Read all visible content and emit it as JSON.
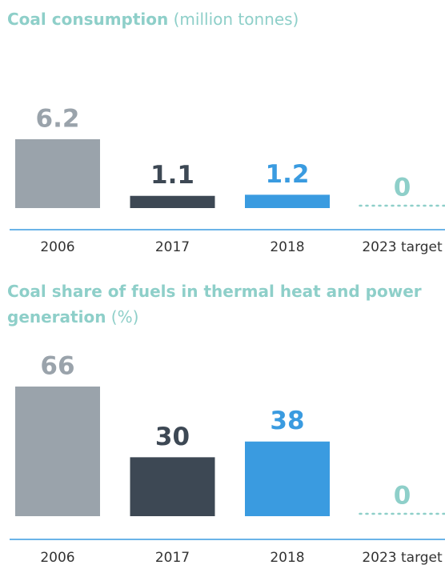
{
  "chart_data": [
    {
      "type": "bar",
      "title": "Coal consumption",
      "unit": "(million tonnes)",
      "categories": [
        "2006",
        "2017",
        "2018",
        "2023 target"
      ],
      "values": [
        6.2,
        1.1,
        1.2,
        0
      ],
      "colors": [
        "#9aa3ab",
        "#3d4854",
        "#3a9be0",
        "#8ecfc9"
      ]
    },
    {
      "type": "bar",
      "title": "Coal share of fuels in thermal heat and power generation",
      "unit": "(%)",
      "categories": [
        "2006",
        "2017",
        "2018",
        "2023 target"
      ],
      "values": [
        66,
        30,
        38,
        0
      ],
      "colors": [
        "#9aa3ab",
        "#3d4854",
        "#3a9be0",
        "#8ecfc9"
      ]
    }
  ]
}
